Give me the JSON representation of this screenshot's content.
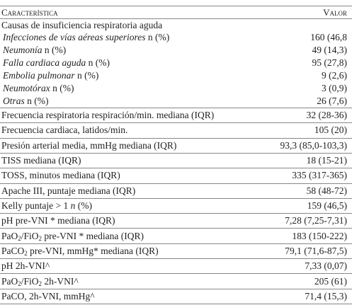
{
  "header": {
    "label": "Característica",
    "value": "Valor"
  },
  "causes": {
    "title": "Causas de insuficiencia respiratoria aguda",
    "items": [
      {
        "label": [
          {
            "i": "Infecciones de vías aéreas superiores"
          },
          {
            "t": " n (%)"
          }
        ],
        "value": "160 (46,8"
      },
      {
        "label": [
          {
            "i": "Neumonía"
          },
          {
            "t": " n (%)"
          }
        ],
        "value": "49 (14,3)"
      },
      {
        "label": [
          {
            "i": "Falla cardiaca aguda"
          },
          {
            "t": " n (%)"
          }
        ],
        "value": "95 (27,8)"
      },
      {
        "label": [
          {
            "i": "Embolia pulmonar"
          },
          {
            "t": " n (%)"
          }
        ],
        "value": "9 (2,6)"
      },
      {
        "label": [
          {
            "i": "Neumotórax"
          },
          {
            "t": " n (%)"
          }
        ],
        "value": "3 (0,9)"
      },
      {
        "label": [
          {
            "i": "Otras"
          },
          {
            "t": " n (%)"
          }
        ],
        "value": "26 (7,6)"
      }
    ]
  },
  "rows": [
    {
      "label": [
        {
          "t": "Frecuencia respiratoria respiración/min. mediana (IQR)"
        }
      ],
      "value": "32 (28-36)"
    },
    {
      "label": [
        {
          "t": "Frecuencia cardiaca, latidos/min."
        }
      ],
      "value": "105 (20)"
    },
    {
      "label": [
        {
          "t": "Presión arterial media, mmHg mediana (IQR)"
        }
      ],
      "value": "93,3 (85,0-103,3)"
    },
    {
      "label": [
        {
          "t": "TISS mediana (IQR)"
        }
      ],
      "value": "18 (15-21)"
    },
    {
      "label": [
        {
          "t": "TOSS, minutos mediana (IQR)"
        }
      ],
      "value": "335 (317-365)"
    },
    {
      "label": [
        {
          "t": "Apache III, puntaje mediana (IQR)"
        }
      ],
      "value": "58 (48-72)"
    },
    {
      "label": [
        {
          "t": "Kelly puntaje > 1 "
        },
        {
          "i": "n"
        },
        {
          "t": " (%)"
        }
      ],
      "value": "159 (46,5)"
    },
    {
      "label": [
        {
          "t": "pH pre-VNI * mediana (IQR)"
        }
      ],
      "value": "7,28 (7,25-7,31)"
    },
    {
      "label": [
        {
          "t": "PaO"
        },
        {
          "sub": "2"
        },
        {
          "t": "/FiO"
        },
        {
          "sub": "2"
        },
        {
          "t": " pre-VNI * mediana (IQR)"
        }
      ],
      "value": "183 (150-222)"
    },
    {
      "label": [
        {
          "t": "PaCO"
        },
        {
          "sub": "2"
        },
        {
          "t": " pre-VNI, mmHg* mediana (IQR)"
        }
      ],
      "value": "79,1 (71,6-87,5)"
    },
    {
      "label": [
        {
          "t": "pH 2h-VNI^"
        }
      ],
      "value": "7,33 (0,07)"
    },
    {
      "label": [
        {
          "t": "PaO"
        },
        {
          "sub": "2"
        },
        {
          "t": "/FiO"
        },
        {
          "sub": "2"
        },
        {
          "t": " 2h-VNI^"
        }
      ],
      "value": "205 (61)"
    },
    {
      "label": [
        {
          "t": "PaCO, 2h-VNI, mmHg^"
        }
      ],
      "value": "71,4 (15,3)"
    }
  ]
}
